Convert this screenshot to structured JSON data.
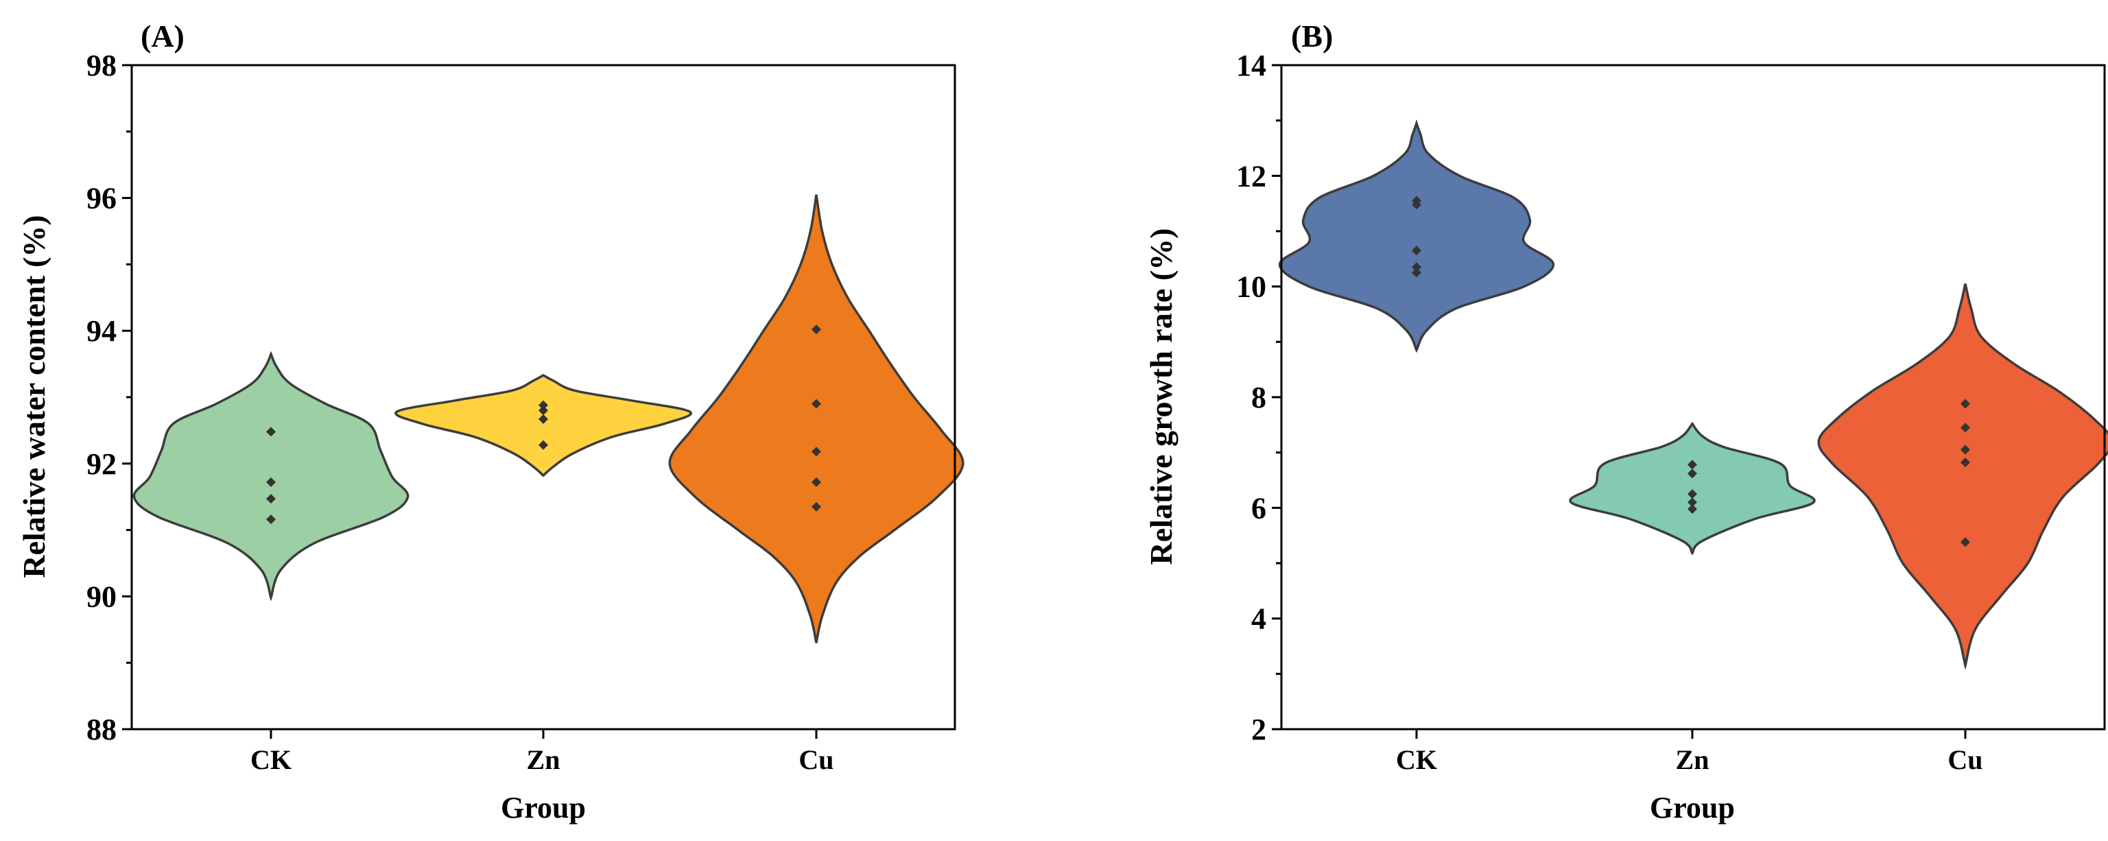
{
  "chart_data": [
    {
      "type": "violin",
      "panel_label": "(A)",
      "xlabel": "Group",
      "ylabel": "Relative water content (%)",
      "ylim": [
        88,
        98
      ],
      "yticks": [
        "88",
        "90",
        "92",
        "94",
        "96",
        "98"
      ],
      "categories": [
        "CK",
        "Zn",
        "Cu"
      ],
      "series": [
        {
          "name": "CK",
          "color": "#9ccfa4",
          "points": [
            92.48,
            91.72,
            91.47,
            91.16
          ],
          "profile": [
            [
              89.98,
              0.0
            ],
            [
              90.4,
              0.05
            ],
            [
              90.8,
              0.22
            ],
            [
              91.2,
              0.58
            ],
            [
              91.5,
              0.7
            ],
            [
              91.8,
              0.62
            ],
            [
              92.2,
              0.56
            ],
            [
              92.6,
              0.5
            ],
            [
              92.9,
              0.28
            ],
            [
              93.2,
              0.1
            ],
            [
              93.45,
              0.03
            ],
            [
              93.65,
              0.0
            ]
          ]
        },
        {
          "name": "Zn",
          "color": "#ffd23f",
          "points": [
            92.88,
            92.8,
            92.67,
            92.28
          ],
          "profile": [
            [
              91.82,
              0.0
            ],
            [
              91.95,
              0.05
            ],
            [
              92.15,
              0.15
            ],
            [
              92.4,
              0.35
            ],
            [
              92.6,
              0.62
            ],
            [
              92.78,
              0.75
            ],
            [
              92.95,
              0.45
            ],
            [
              93.1,
              0.16
            ],
            [
              93.25,
              0.05
            ],
            [
              93.33,
              0.0
            ]
          ]
        },
        {
          "name": "Cu",
          "color": "#ed7a1d",
          "points": [
            94.02,
            92.9,
            92.18,
            91.72,
            91.35
          ],
          "profile": [
            [
              89.3,
              0.0
            ],
            [
              89.7,
              0.03
            ],
            [
              90.2,
              0.1
            ],
            [
              90.6,
              0.22
            ],
            [
              91.0,
              0.4
            ],
            [
              91.5,
              0.62
            ],
            [
              92.0,
              0.75
            ],
            [
              92.5,
              0.64
            ],
            [
              93.0,
              0.5
            ],
            [
              93.5,
              0.38
            ],
            [
              94.0,
              0.27
            ],
            [
              94.5,
              0.16
            ],
            [
              95.0,
              0.08
            ],
            [
              95.5,
              0.03
            ],
            [
              96.05,
              0.0
            ]
          ]
        }
      ]
    },
    {
      "type": "violin",
      "panel_label": "(B)",
      "xlabel": "Group",
      "ylabel": "Relative growth rate (%)",
      "ylim": [
        2,
        14
      ],
      "yticks": [
        "2",
        "4",
        "6",
        "8",
        "10",
        "12",
        "14"
      ],
      "categories": [
        "CK",
        "Zn",
        "Cu"
      ],
      "series": [
        {
          "name": "CK",
          "color": "#5a78aa",
          "points": [
            11.55,
            11.48,
            10.65,
            10.35,
            10.25
          ],
          "profile": [
            [
              8.85,
              0.0
            ],
            [
              9.2,
              0.05
            ],
            [
              9.6,
              0.2
            ],
            [
              10.0,
              0.55
            ],
            [
              10.4,
              0.7
            ],
            [
              10.8,
              0.55
            ],
            [
              11.2,
              0.58
            ],
            [
              11.6,
              0.5
            ],
            [
              12.0,
              0.22
            ],
            [
              12.4,
              0.06
            ],
            [
              12.75,
              0.02
            ],
            [
              12.95,
              0.0
            ]
          ]
        },
        {
          "name": "Zn",
          "color": "#84c9b2",
          "points": [
            6.78,
            6.62,
            6.25,
            6.1,
            5.98
          ],
          "profile": [
            [
              5.18,
              0.0
            ],
            [
              5.4,
              0.05
            ],
            [
              5.8,
              0.32
            ],
            [
              6.1,
              0.62
            ],
            [
              6.4,
              0.5
            ],
            [
              6.8,
              0.45
            ],
            [
              7.1,
              0.16
            ],
            [
              7.3,
              0.05
            ],
            [
              7.52,
              0.0
            ]
          ]
        },
        {
          "name": "Cu",
          "color": "#ec6138",
          "points": [
            7.88,
            7.45,
            7.05,
            6.82,
            5.38
          ],
          "profile": [
            [
              3.15,
              0.0
            ],
            [
              3.8,
              0.05
            ],
            [
              4.4,
              0.18
            ],
            [
              5.0,
              0.32
            ],
            [
              5.6,
              0.4
            ],
            [
              6.2,
              0.5
            ],
            [
              6.8,
              0.68
            ],
            [
              7.2,
              0.75
            ],
            [
              7.6,
              0.66
            ],
            [
              8.1,
              0.48
            ],
            [
              8.6,
              0.25
            ],
            [
              9.1,
              0.08
            ],
            [
              9.6,
              0.03
            ],
            [
              10.05,
              0.0
            ]
          ]
        }
      ]
    }
  ]
}
